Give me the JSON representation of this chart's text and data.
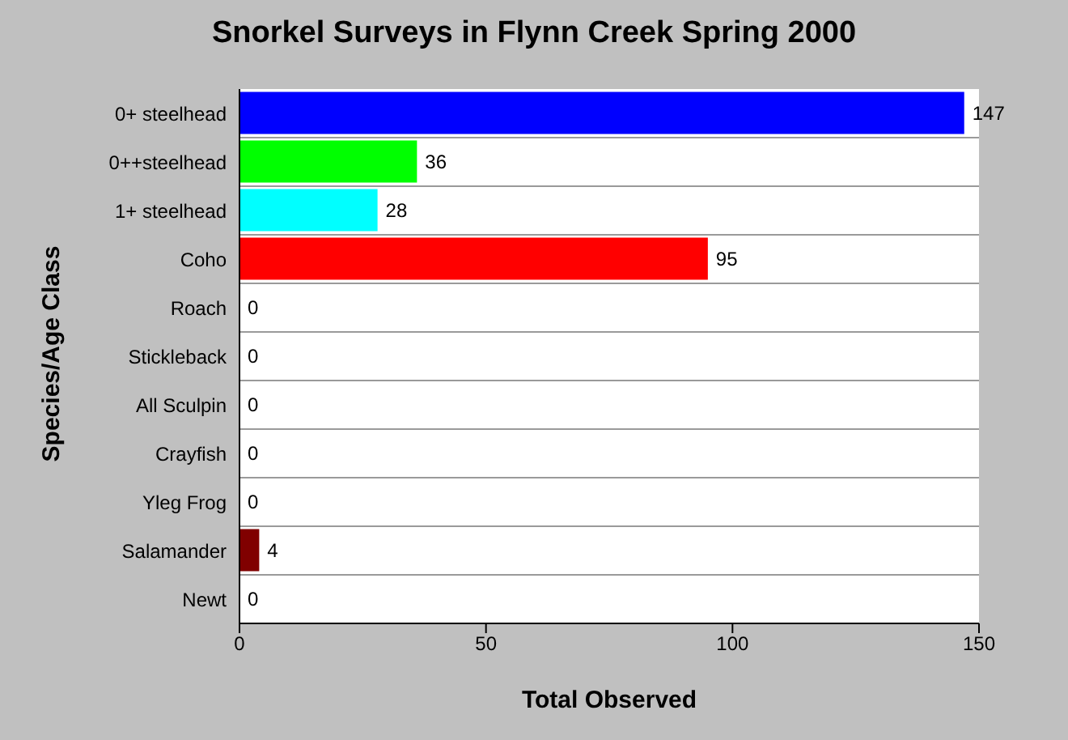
{
  "chart_data": {
    "type": "bar",
    "orientation": "horizontal",
    "title": "Snorkel Surveys in Flynn Creek Spring 2000",
    "xlabel": "Total Observed",
    "ylabel": "Species/Age Class",
    "categories": [
      "0+ steelhead",
      "0++steelhead",
      "1+ steelhead",
      "Coho",
      "Roach",
      "Stickleback",
      "All Sculpin",
      "Crayfish",
      "Yleg Frog",
      "Salamander",
      "Newt"
    ],
    "values": [
      147,
      36,
      28,
      95,
      0,
      0,
      0,
      0,
      0,
      4,
      0
    ],
    "colors": [
      "#0000ff",
      "#00ff00",
      "#00ffff",
      "#ff0000",
      "#000000",
      "#000000",
      "#000000",
      "#000000",
      "#000000",
      "#800000",
      "#000000"
    ],
    "xlim": [
      0,
      150
    ],
    "xticks": [
      0,
      50,
      100,
      150
    ],
    "grid": "y",
    "data_labels": true
  }
}
